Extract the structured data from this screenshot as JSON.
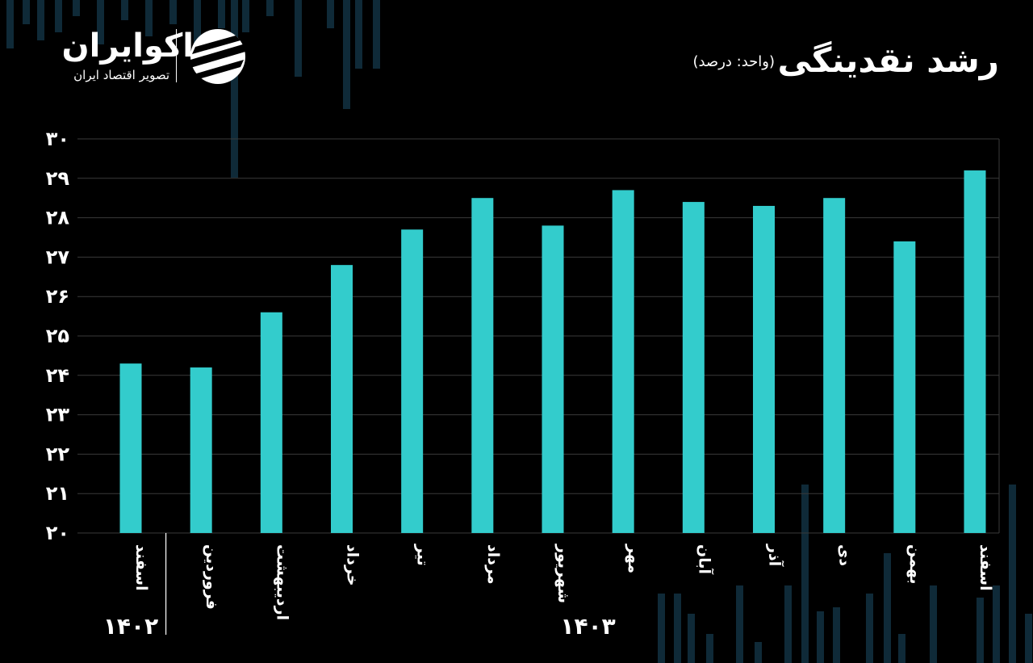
{
  "brand": {
    "name": "اکوایران",
    "tagline": "تصویر اقتصاد ایران"
  },
  "colors": {
    "background": "#000000",
    "bar": "#33CCCC",
    "grid": "#3a3a3a",
    "text": "#ffffff",
    "deco": "#0f2a38"
  },
  "chart_data": {
    "type": "bar",
    "title": "رشد نقدینگی",
    "subtitle": "(واحد: درصد)",
    "categories": [
      "اسفند",
      "فروردین",
      "اردیبهشت",
      "خرداد",
      "تیر",
      "مرداد",
      "شهریور",
      "مهر",
      "آبان",
      "آذر",
      "دی",
      "بهمن",
      "اسفند"
    ],
    "values": [
      24.3,
      24.2,
      25.6,
      26.8,
      27.7,
      28.5,
      27.8,
      28.7,
      28.4,
      28.3,
      28.5,
      27.4,
      29.2
    ],
    "year_groups": [
      {
        "label": "۱۴۰۲",
        "from": 0,
        "to": 0
      },
      {
        "label": "۱۴۰۳",
        "from": 1,
        "to": 12
      }
    ],
    "y_ticks": [
      "۲۰",
      "۲۱",
      "۲۲",
      "۲۳",
      "۲۴",
      "۲۵",
      "۲۶",
      "۲۷",
      "۲۸",
      "۲۹",
      "۳۰"
    ],
    "ylim": [
      20,
      30
    ],
    "grid": true,
    "legend": "none"
  }
}
